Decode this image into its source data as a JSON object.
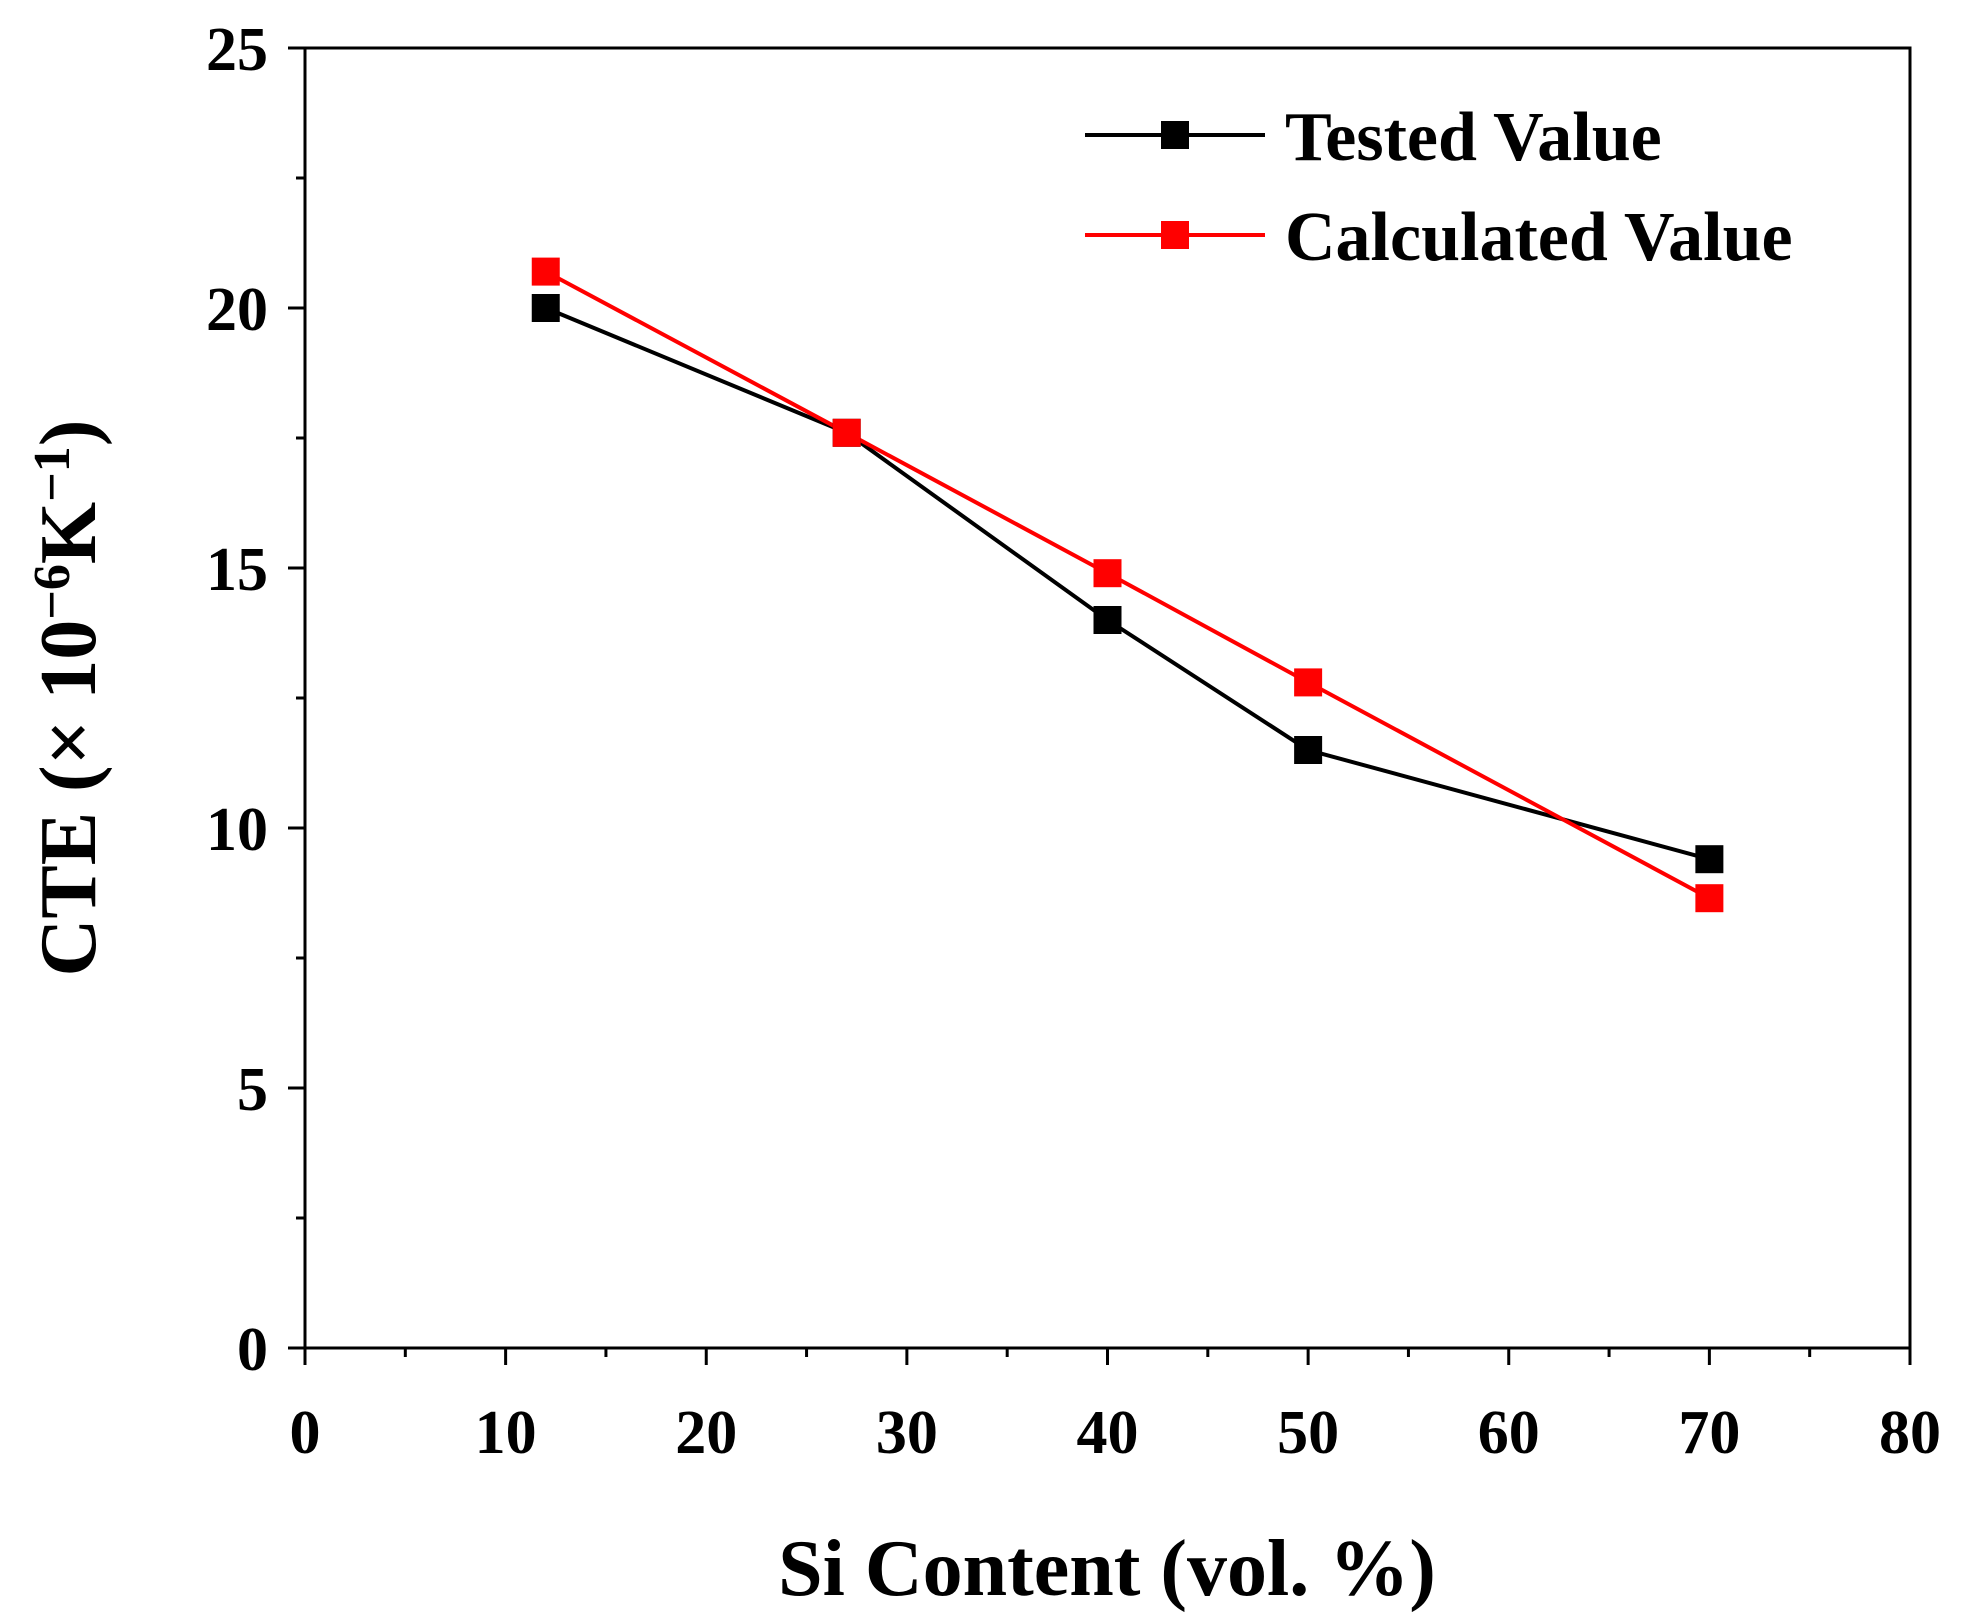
{
  "chart_data": {
    "type": "line",
    "title": "",
    "xlabel": "Si Content (vol. %)",
    "ylabel_parts": [
      "CTE (× 10",
      "−6",
      "K",
      "−1",
      ")"
    ],
    "xlim": [
      0,
      80
    ],
    "ylim": [
      0,
      25
    ],
    "xticks": [
      0,
      10,
      20,
      30,
      40,
      50,
      60,
      70,
      80
    ],
    "xtick_labels": [
      "0",
      "10",
      "20",
      "30",
      "40",
      "50",
      "60",
      "70",
      "80"
    ],
    "yticks": [
      0,
      5,
      10,
      15,
      20,
      25
    ],
    "ytick_labels": [
      "0",
      "5",
      "10",
      "15",
      "20",
      "25"
    ],
    "x_minor_step": 5,
    "y_minor_step": 2.5,
    "grid": false,
    "legend_position": "top-right",
    "x": [
      12,
      27,
      40,
      50,
      70
    ],
    "series": [
      {
        "name": "Tested Value",
        "color": "#000000",
        "marker": "square",
        "values": [
          20.0,
          17.6,
          14.0,
          11.5,
          9.4
        ]
      },
      {
        "name": "Calculated Value",
        "color": "#ff0000",
        "marker": "square",
        "values": [
          20.7,
          17.6,
          14.9,
          12.8,
          8.65
        ]
      }
    ]
  }
}
